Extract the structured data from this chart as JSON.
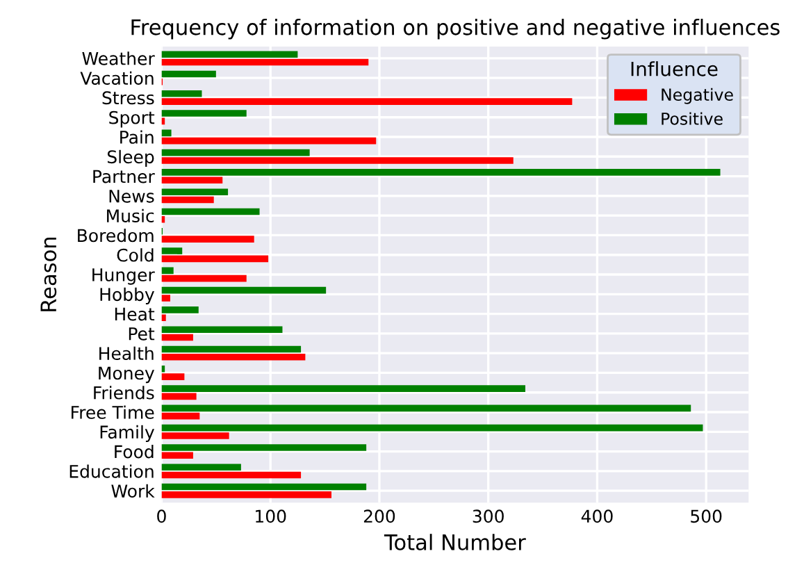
{
  "chart_data": {
    "type": "bar",
    "orientation": "horizontal",
    "title": "Frequency of information on positive and negative influences",
    "xlabel": "Total Number",
    "ylabel": "Reason",
    "legend_title": "Influence",
    "legend": "top right",
    "grid": true,
    "categories": [
      "Weather",
      "Vacation",
      "Stress",
      "Sport",
      "Pain",
      "Sleep",
      "Partner",
      "News",
      "Music",
      "Boredom",
      "Cold",
      "Hunger",
      "Hobby",
      "Heat",
      "Pet",
      "Health",
      "Money",
      "Friends",
      "Free Time",
      "Family",
      "Food",
      "Education",
      "Work"
    ],
    "xlim": [
      0,
      539
    ],
    "xticks": [
      0,
      100,
      200,
      300,
      400,
      500
    ],
    "series": [
      {
        "name": "Negative",
        "color": "#ff0000",
        "values": [
          190,
          1,
          377,
          3,
          197,
          323,
          56,
          48,
          3,
          85,
          98,
          78,
          8,
          4,
          29,
          132,
          21,
          32,
          35,
          62,
          29,
          128,
          156
        ]
      },
      {
        "name": "Positive",
        "color": "#008000",
        "values": [
          125,
          50,
          37,
          78,
          9,
          136,
          513,
          61,
          90,
          1,
          19,
          11,
          151,
          34,
          111,
          128,
          3,
          334,
          486,
          497,
          188,
          73,
          188
        ]
      }
    ]
  }
}
